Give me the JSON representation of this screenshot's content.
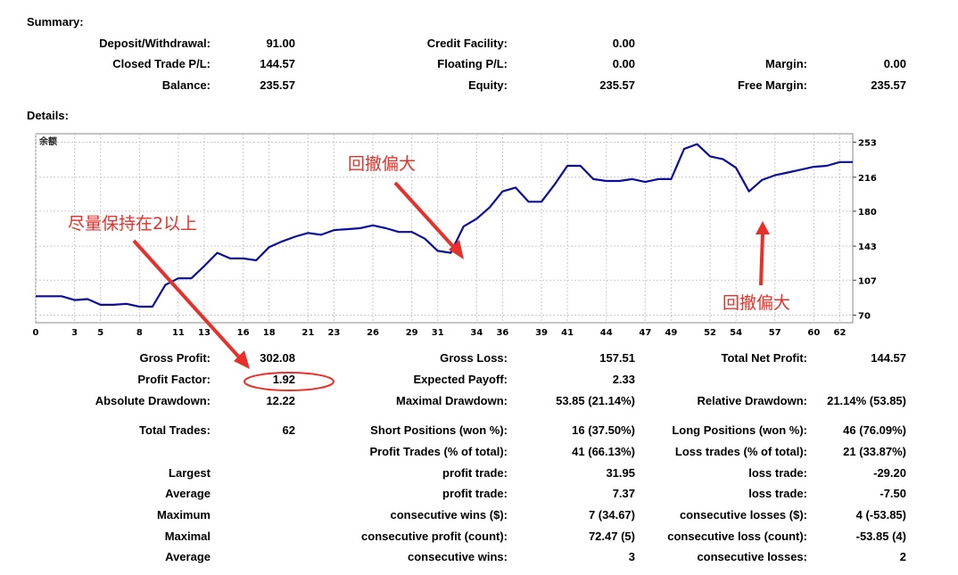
{
  "summary": {
    "title": "Summary:",
    "deposit_withdrawal": {
      "label": "Deposit/Withdrawal:",
      "value": "91.00"
    },
    "credit_facility": {
      "label": "Credit Facility:",
      "value": "0.00"
    },
    "closed_trade_pl": {
      "label": "Closed Trade P/L:",
      "value": "144.57"
    },
    "floating_pl": {
      "label": "Floating P/L:",
      "value": "0.00"
    },
    "margin": {
      "label": "Margin:",
      "value": "0.00"
    },
    "balance": {
      "label": "Balance:",
      "value": "235.57"
    },
    "equity": {
      "label": "Equity:",
      "value": "235.57"
    },
    "free_margin": {
      "label": "Free Margin:",
      "value": "235.57"
    }
  },
  "details": {
    "title": "Details:",
    "gross_profit": {
      "label": "Gross Profit:",
      "value": "302.08"
    },
    "gross_loss": {
      "label": "Gross Loss:",
      "value": "157.51"
    },
    "total_net_profit": {
      "label": "Total Net Profit:",
      "value": "144.57"
    },
    "profit_factor": {
      "label": "Profit Factor:",
      "value": "1.92"
    },
    "expected_payoff": {
      "label": "Expected Payoff:",
      "value": "2.33"
    },
    "absolute_drawdown": {
      "label": "Absolute Drawdown:",
      "value": "12.22"
    },
    "maximal_drawdown": {
      "label": "Maximal Drawdown:",
      "value": "53.85 (21.14%)"
    },
    "relative_drawdown": {
      "label": "Relative Drawdown:",
      "value": "21.14% (53.85)"
    },
    "total_trades": {
      "label": "Total Trades:",
      "value": "62"
    },
    "short_positions": {
      "label": "Short Positions (won %):",
      "value": "16 (37.50%)"
    },
    "long_positions": {
      "label": "Long Positions (won %):",
      "value": "46 (76.09%)"
    },
    "profit_trades": {
      "label": "Profit Trades (% of total):",
      "value": "41 (66.13%)"
    },
    "loss_trades": {
      "label": "Loss trades (% of total):",
      "value": "21 (33.87%)"
    },
    "largest": {
      "label": "Largest",
      "profit_label": "profit trade:",
      "profit_value": "31.95",
      "loss_label": "loss trade:",
      "loss_value": "-29.20"
    },
    "average": {
      "label": "Average",
      "profit_label": "profit trade:",
      "profit_value": "7.37",
      "loss_label": "loss trade:",
      "loss_value": "-7.50"
    },
    "maximum": {
      "label": "Maximum",
      "profit_label": "consecutive wins ($):",
      "profit_value": "7 (34.67)",
      "loss_label": "consecutive losses ($):",
      "loss_value": "4 (-53.85)"
    },
    "maximal": {
      "label": "Maximal",
      "profit_label": "consecutive profit (count):",
      "profit_value": "72.47 (5)",
      "loss_label": "consecutive loss (count):",
      "loss_value": "-53.85 (4)"
    },
    "average_consec": {
      "label": "Average",
      "profit_label": "consecutive wins:",
      "profit_value": "3",
      "loss_label": "consecutive losses:",
      "loss_value": "2"
    }
  },
  "annotations": {
    "keep_above_2": "尽量保持在2以上",
    "drawdown_large_1": "回撤偏大",
    "drawdown_large_2": "回撤偏大"
  },
  "chart_data": {
    "type": "line",
    "title": "余额",
    "x_ticks": [
      0,
      3,
      5,
      8,
      11,
      13,
      16,
      18,
      21,
      23,
      26,
      29,
      31,
      34,
      36,
      39,
      41,
      44,
      47,
      49,
      52,
      54,
      57,
      60,
      62
    ],
    "y_ticks": [
      70,
      107,
      143,
      180,
      216,
      253
    ],
    "xlim": [
      0,
      63
    ],
    "ylim": [
      62,
      262
    ],
    "grid": true,
    "line_color": "#0c0c9c",
    "x": [
      0,
      2,
      3,
      4,
      5,
      6,
      7,
      8,
      9,
      10,
      11,
      12,
      13,
      14,
      15,
      16,
      17,
      18,
      19,
      20,
      21,
      22,
      23,
      24,
      25,
      26,
      27,
      28,
      29,
      30,
      31,
      32,
      33,
      34,
      35,
      36,
      37,
      38,
      39,
      40,
      41,
      42,
      43,
      44,
      45,
      46,
      47,
      48,
      49,
      50,
      51,
      52,
      53,
      54,
      55,
      56,
      57,
      58,
      59,
      60,
      61,
      62,
      63
    ],
    "y": [
      90,
      90,
      86,
      87,
      81,
      81,
      82,
      79,
      79,
      102,
      109,
      109,
      122,
      136,
      130,
      130,
      128,
      142,
      148,
      153,
      157,
      155,
      160,
      161,
      162,
      165,
      162,
      158,
      158,
      151,
      138,
      136,
      164,
      172,
      184,
      201,
      205,
      190,
      190,
      208,
      228,
      228,
      214,
      212,
      212,
      214,
      211,
      214,
      214,
      246,
      251,
      238,
      235,
      226,
      201,
      213,
      218,
      221,
      224,
      227,
      228,
      232,
      232
    ],
    "plot_bg": "#ffffff",
    "grid_color": "#c9c9c9"
  },
  "colors": {
    "annotation": "#e8302a"
  }
}
